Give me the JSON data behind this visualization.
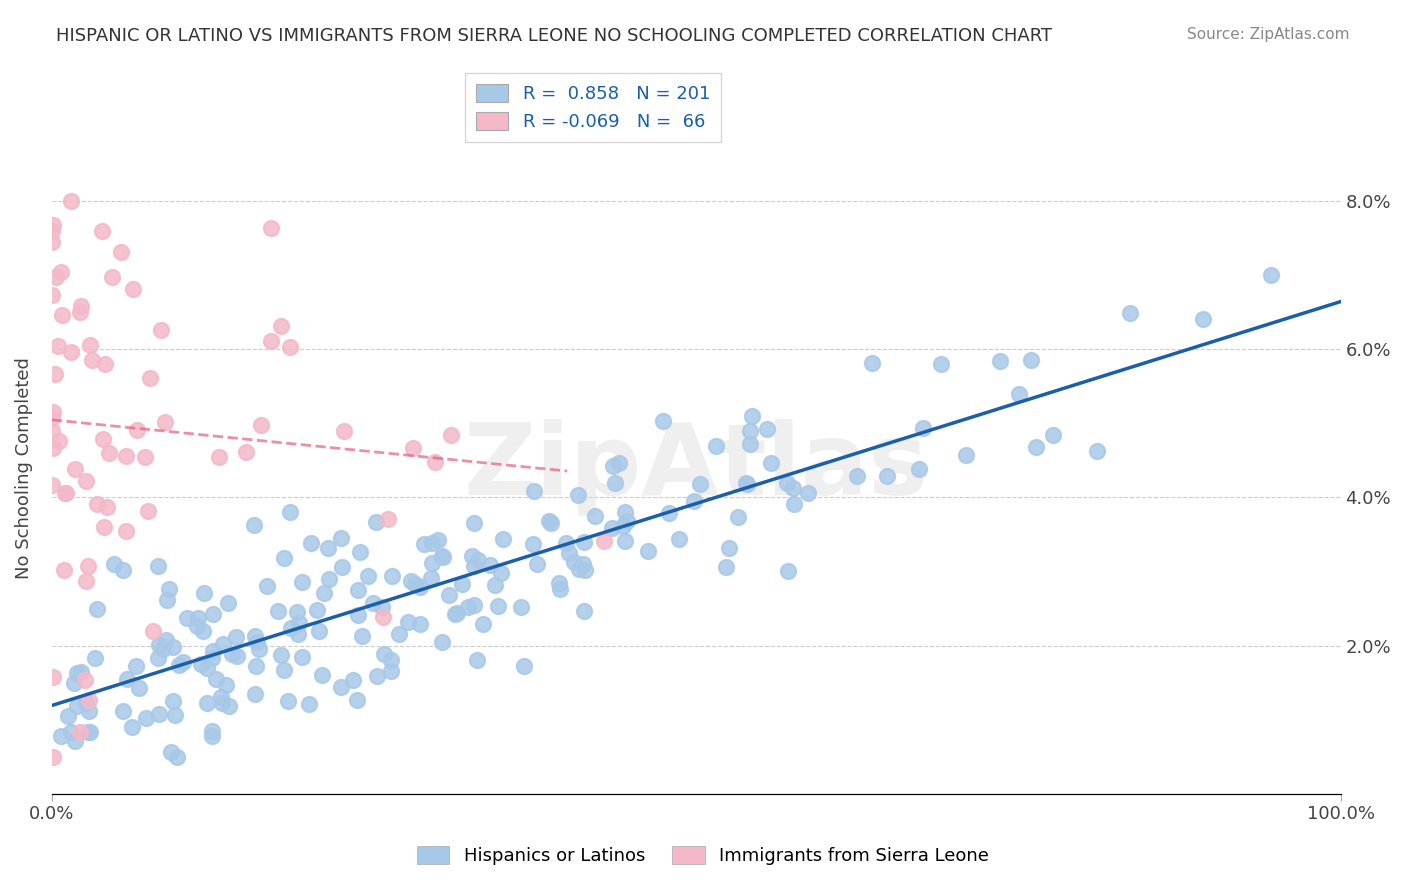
{
  "title": "HISPANIC OR LATINO VS IMMIGRANTS FROM SIERRA LEONE NO SCHOOLING COMPLETED CORRELATION CHART",
  "source": "Source: ZipAtlas.com",
  "ylabel": "No Schooling Completed",
  "xlabel": "",
  "xlim": [
    0,
    100
  ],
  "ylim": [
    0,
    0.088
  ],
  "yticks": [
    0.0,
    0.02,
    0.04,
    0.06,
    0.08
  ],
  "ytick_labels": [
    "",
    "2.0%",
    "4.0%",
    "6.0%",
    "8.0%"
  ],
  "xticks": [
    0,
    100
  ],
  "xtick_labels": [
    "0.0%",
    "100.0%"
  ],
  "blue_R": 0.858,
  "blue_N": 201,
  "pink_R": -0.069,
  "pink_N": 66,
  "blue_color": "#a8c8e8",
  "blue_line_color": "#1a5fa8",
  "pink_color": "#f4b8c8",
  "pink_line_color": "#e06080",
  "watermark": "ZipAtlas",
  "legend_label_blue": "Hispanics or Latinos",
  "legend_label_pink": "Immigrants from Sierra Leone",
  "blue_seed": 42,
  "pink_seed": 7
}
